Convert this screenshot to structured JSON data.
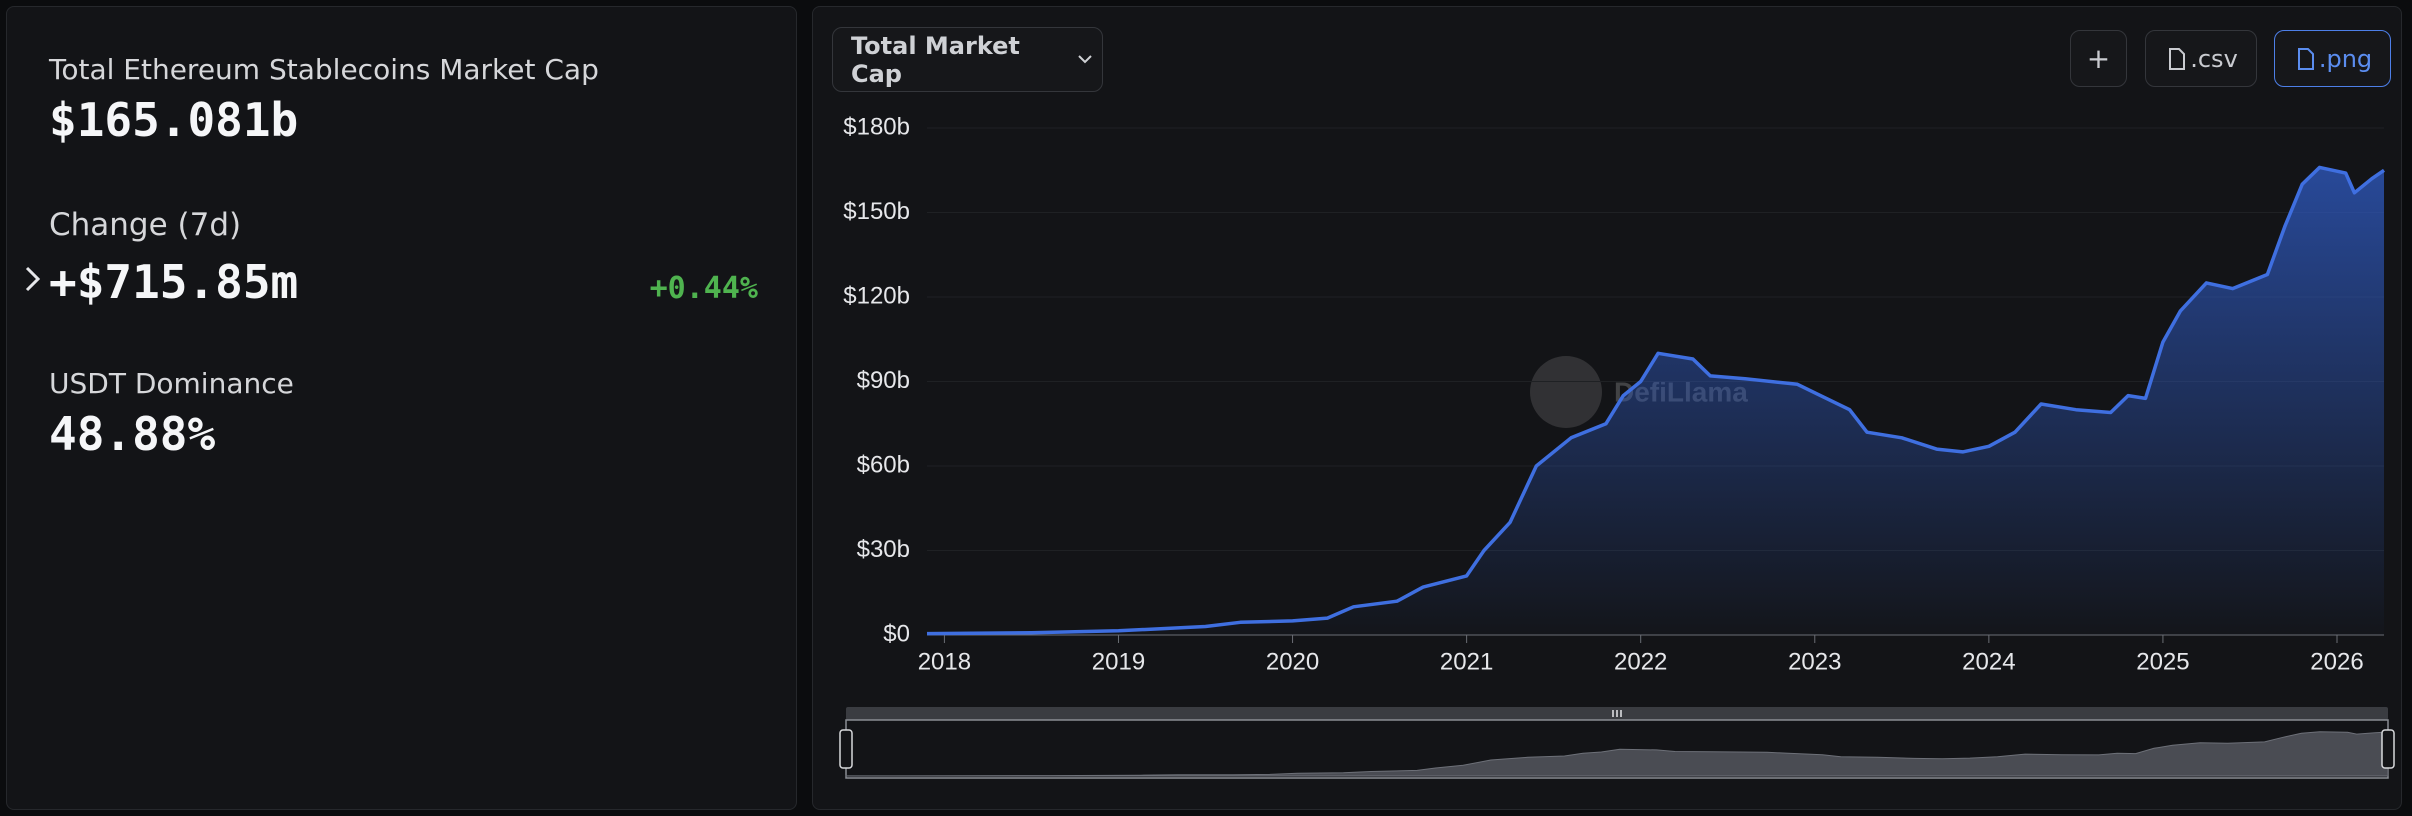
{
  "summary": {
    "title": "Total Ethereum Stablecoins Market Cap",
    "total": "$165.081b",
    "change_label": "Change (7d)",
    "change_value": "+$715.85m",
    "change_percent": "+0.44%",
    "dominance_label": "USDT Dominance",
    "dominance_value": "48.88%"
  },
  "toolbar": {
    "dropdown": "Total Market Cap",
    "add": "+",
    "csv": ".csv",
    "png": ".png"
  },
  "chart_data": {
    "type": "area",
    "watermark": "DefiLlama",
    "color": "#3f6fe0",
    "x": [
      2017.9,
      2018.5,
      2019.0,
      2019.5,
      2019.7,
      2020.0,
      2020.2,
      2020.35,
      2020.6,
      2020.75,
      2021.0,
      2021.1,
      2021.25,
      2021.4,
      2021.6,
      2021.8,
      2021.9,
      2022.0,
      2022.1,
      2022.3,
      2022.4,
      2022.6,
      2022.9,
      2023.0,
      2023.2,
      2023.3,
      2023.5,
      2023.7,
      2023.85,
      2024.0,
      2024.15,
      2024.3,
      2024.5,
      2024.7,
      2024.8,
      2024.9,
      2025.0,
      2025.1,
      2025.25,
      2025.4,
      2025.6,
      2025.7,
      2025.8,
      2025.9,
      2026.05,
      2026.1,
      2026.2,
      2026.27
    ],
    "values": [
      0.5,
      0.8,
      1.5,
      3,
      4.5,
      5,
      6,
      10,
      12,
      17,
      21,
      30,
      40,
      60,
      70,
      75,
      85,
      90,
      100,
      98,
      92,
      91,
      89,
      86,
      80,
      72,
      70,
      66,
      65,
      67,
      72,
      82,
      80,
      79,
      85,
      84,
      104,
      115,
      125,
      123,
      128,
      145,
      160,
      166,
      164,
      157,
      162,
      165
    ],
    "xlim": [
      2017.9,
      2026.27
    ],
    "xticks": [
      2018,
      2019,
      2020,
      2021,
      2022,
      2023,
      2024,
      2025,
      2026
    ],
    "ylim": [
      0,
      180
    ],
    "yticks": [
      {
        "value": 0,
        "label": "$0"
      },
      {
        "value": 30,
        "label": "$30b"
      },
      {
        "value": 60,
        "label": "$60b"
      },
      {
        "value": 90,
        "label": "$90b"
      },
      {
        "value": 120,
        "label": "$120b"
      },
      {
        "value": 150,
        "label": "$150b"
      },
      {
        "value": 180,
        "label": "$180b"
      }
    ],
    "grid": true
  }
}
